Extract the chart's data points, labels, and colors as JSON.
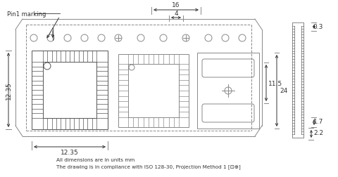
{
  "bg_color": "#ffffff",
  "line_color": "#888888",
  "dark_line": "#555555",
  "text_color": "#333333",
  "font_size_small": 6.5,
  "font_size_note": 5.5,
  "title_note1": "All dimensions are in units mm",
  "title_note2": "The drawing is in compliance with ISO 128-30, Projection Method 1 [⊡⊕]",
  "pin1_label": "Pin1 marking",
  "dim_16": "16",
  "dim_4": "4",
  "dim_12_35_vert": "12.35",
  "dim_12_35_horiz": "12.35",
  "dim_11_5": "11.5",
  "dim_24": "24",
  "dim_0_3": "0.3",
  "dim_1_7": "1.7",
  "dim_2_2": "2.2"
}
